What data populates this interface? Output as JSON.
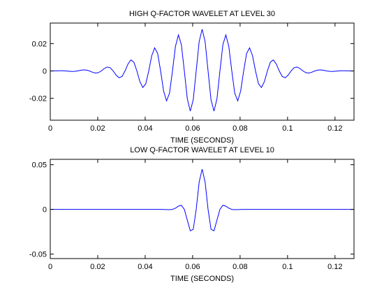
{
  "chart_data": [
    {
      "type": "line",
      "title": "HIGH Q-FACTOR WAVELET AT LEVEL 30",
      "xlabel": "TIME (SECONDS)",
      "xlim": [
        0,
        0.128
      ],
      "xticks": [
        0,
        0.02,
        0.04,
        0.06,
        0.08,
        0.1,
        0.12
      ],
      "ylim": [
        -0.036,
        0.035
      ],
      "yticks": [
        -0.02,
        0,
        0.02
      ],
      "series": [
        {
          "color": "#0000ff",
          "x": [
            0.00025,
            0.0015,
            0.00275,
            0.004,
            0.00525,
            0.0065,
            0.00775,
            0.009,
            0.01025,
            0.0115,
            0.01275,
            0.014,
            0.01525,
            0.0165,
            0.01775,
            0.019,
            0.02025,
            0.0215,
            0.02275,
            0.024,
            0.02525,
            0.0265,
            0.02775,
            0.029,
            0.03025,
            0.0315,
            0.03275,
            0.034,
            0.03525,
            0.0365,
            0.03775,
            0.039,
            0.04025,
            0.0415,
            0.04275,
            0.044,
            0.04525,
            0.0465,
            0.04775,
            0.049,
            0.05025,
            0.0515,
            0.05275,
            0.054,
            0.05525,
            0.0565,
            0.05775,
            0.059,
            0.06025,
            0.0615,
            0.06275,
            0.064,
            0.06525,
            0.0665,
            0.06775,
            0.069,
            0.07025,
            0.0715,
            0.07275,
            0.074,
            0.07525,
            0.0765,
            0.07775,
            0.079,
            0.08025,
            0.0815,
            0.08275,
            0.084,
            0.08525,
            0.0865,
            0.08775,
            0.089,
            0.09025,
            0.0915,
            0.09275,
            0.094,
            0.09525,
            0.0965,
            0.09775,
            0.099,
            0.10025,
            0.1015,
            0.10275,
            0.104,
            0.10525,
            0.1065,
            0.10775,
            0.109,
            0.11025,
            0.1115,
            0.11275,
            0.114,
            0.11525,
            0.1165,
            0.11775,
            0.119,
            0.12025,
            0.1215,
            0.12275,
            0.124,
            0.12525,
            0.1265,
            0.12775
          ],
          "values": [
            -6e-05,
            0,
            8e-05,
            0.00015,
            0.00013,
            0,
            -0.0002,
            -0.00035,
            -0.0003,
            0,
            0.00045,
            0.00076,
            0.00064,
            0,
            -0.00091,
            -0.00153,
            -0.00127,
            0,
            0.00174,
            0.00286,
            0.00234,
            0,
            -0.00308,
            -0.00498,
            -0.004,
            0,
            0.00508,
            0.00806,
            0.00635,
            0,
            -0.00778,
            -0.0121,
            -0.00936,
            0,
            0.01106,
            0.01688,
            0.01282,
            0,
            -0.01459,
            -0.02187,
            -0.0163,
            0,
            0.01788,
            0.02631,
            0.01925,
            0,
            -0.02035,
            -0.02939,
            -0.02112,
            0,
            0.02151,
            0.0305,
            0.02151,
            0,
            -0.02112,
            -0.02939,
            -0.02035,
            0,
            0.01925,
            0.02631,
            0.01788,
            0,
            -0.0163,
            -0.02187,
            -0.01459,
            0,
            0.01282,
            0.01688,
            0.01106,
            0,
            -0.00936,
            -0.0121,
            -0.00778,
            0,
            0.00635,
            0.00806,
            0.00508,
            0,
            -0.004,
            -0.00498,
            -0.00308,
            0,
            0.00234,
            0.00286,
            0.00174,
            0,
            -0.00127,
            -0.00153,
            -0.00091,
            0,
            0.00064,
            0.00076,
            0.00045,
            0,
            -0.0003,
            -0.00035,
            -0.0002,
            0,
            0.00013,
            0.00015,
            8e-05,
            0,
            -6e-05
          ]
        }
      ]
    },
    {
      "type": "line",
      "title": "LOW Q-FACTOR WAVELET AT LEVEL 10",
      "xlabel": "TIME (SECONDS)",
      "xlim": [
        0,
        0.128
      ],
      "xticks": [
        0,
        0.02,
        0.04,
        0.06,
        0.08,
        0.1,
        0.12
      ],
      "ylim": [
        -0.055,
        0.056
      ],
      "yticks": [
        -0.05,
        0,
        0.05
      ],
      "series": [
        {
          "color": "#0000ff",
          "x": [
            0.00025,
            0.0015,
            0.00275,
            0.004,
            0.00525,
            0.0065,
            0.00775,
            0.009,
            0.01025,
            0.0115,
            0.01275,
            0.014,
            0.01525,
            0.0165,
            0.01775,
            0.019,
            0.02025,
            0.0215,
            0.02275,
            0.024,
            0.02525,
            0.0265,
            0.02775,
            0.029,
            0.03025,
            0.0315,
            0.03275,
            0.034,
            0.03525,
            0.0365,
            0.03775,
            0.039,
            0.04025,
            0.0415,
            0.04275,
            0.044,
            0.04525,
            0.0465,
            0.04775,
            0.049,
            0.05025,
            0.0515,
            0.05275,
            0.054,
            0.05525,
            0.0565,
            0.05775,
            0.059,
            0.06025,
            0.0615,
            0.06275,
            0.064,
            0.06525,
            0.0665,
            0.06775,
            0.069,
            0.07025,
            0.0715,
            0.07275,
            0.074,
            0.07525,
            0.0765,
            0.07775,
            0.079,
            0.08025,
            0.0815,
            0.08275,
            0.084,
            0.08525,
            0.0865,
            0.08775,
            0.089,
            0.09025,
            0.0915,
            0.09275,
            0.094,
            0.09525,
            0.0965,
            0.09775,
            0.099,
            0.10025,
            0.1015,
            0.10275,
            0.104,
            0.10525,
            0.1065,
            0.10775,
            0.109,
            0.11025,
            0.1115,
            0.11275,
            0.114,
            0.11525,
            0.1165,
            0.11775,
            0.119,
            0.12025,
            0.1215,
            0.12275,
            0.124,
            0.12525,
            0.1265,
            0.12775
          ],
          "values": [
            0,
            0,
            0,
            0,
            0,
            0,
            0,
            0,
            0,
            0,
            0,
            0,
            0,
            0,
            0,
            0,
            0,
            0,
            0,
            0,
            0,
            0,
            0,
            0,
            0,
            0,
            0,
            0,
            0,
            0,
            0,
            0,
            0,
            0,
            0,
            0,
            0,
            0,
            -4e-05,
            -0.00016,
            -0.00027,
            0,
            0.00131,
            0.00362,
            0.00462,
            0,
            -0.01189,
            -0.02397,
            -0.02233,
            0,
            0.03059,
            0.045,
            0.03059,
            0,
            -0.02233,
            -0.02397,
            -0.01189,
            0,
            0.00462,
            0.00362,
            0.00131,
            0,
            -0.00027,
            -0.00016,
            -4e-05,
            0,
            0,
            0,
            0,
            0,
            0,
            0,
            0,
            0,
            0,
            0,
            0,
            0,
            0,
            0,
            0,
            0,
            0,
            0,
            0,
            0,
            0,
            0,
            0,
            0,
            0,
            0,
            0,
            0,
            0,
            0,
            0,
            0,
            0,
            0,
            0,
            0,
            0
          ]
        }
      ]
    }
  ]
}
